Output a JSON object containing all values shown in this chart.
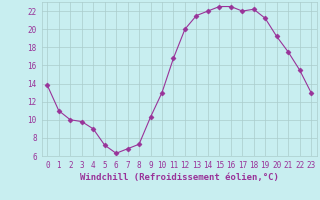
{
  "x": [
    0,
    1,
    2,
    3,
    4,
    5,
    6,
    7,
    8,
    9,
    10,
    11,
    12,
    13,
    14,
    15,
    16,
    17,
    18,
    19,
    20,
    21,
    22,
    23
  ],
  "y": [
    13.8,
    11.0,
    10.0,
    9.8,
    9.0,
    7.2,
    6.3,
    6.8,
    7.3,
    10.3,
    13.0,
    16.8,
    20.0,
    21.5,
    22.0,
    22.5,
    22.5,
    22.0,
    22.2,
    21.2,
    19.2,
    17.5,
    15.5,
    13.0
  ],
  "line_color": "#993399",
  "marker": "D",
  "marker_size": 2.5,
  "bg_color": "#c8eef0",
  "grid_color": "#aacccc",
  "tick_color": "#993399",
  "xlabel": "Windchill (Refroidissement éolien,°C)",
  "xlabel_color": "#993399",
  "ylim": [
    6,
    23
  ],
  "xlim": [
    -0.5,
    23.5
  ],
  "yticks": [
    6,
    8,
    10,
    12,
    14,
    16,
    18,
    20,
    22
  ],
  "xticks": [
    0,
    1,
    2,
    3,
    4,
    5,
    6,
    7,
    8,
    9,
    10,
    11,
    12,
    13,
    14,
    15,
    16,
    17,
    18,
    19,
    20,
    21,
    22,
    23
  ],
  "tick_fontsize": 5.5,
  "label_fontsize": 6.5
}
